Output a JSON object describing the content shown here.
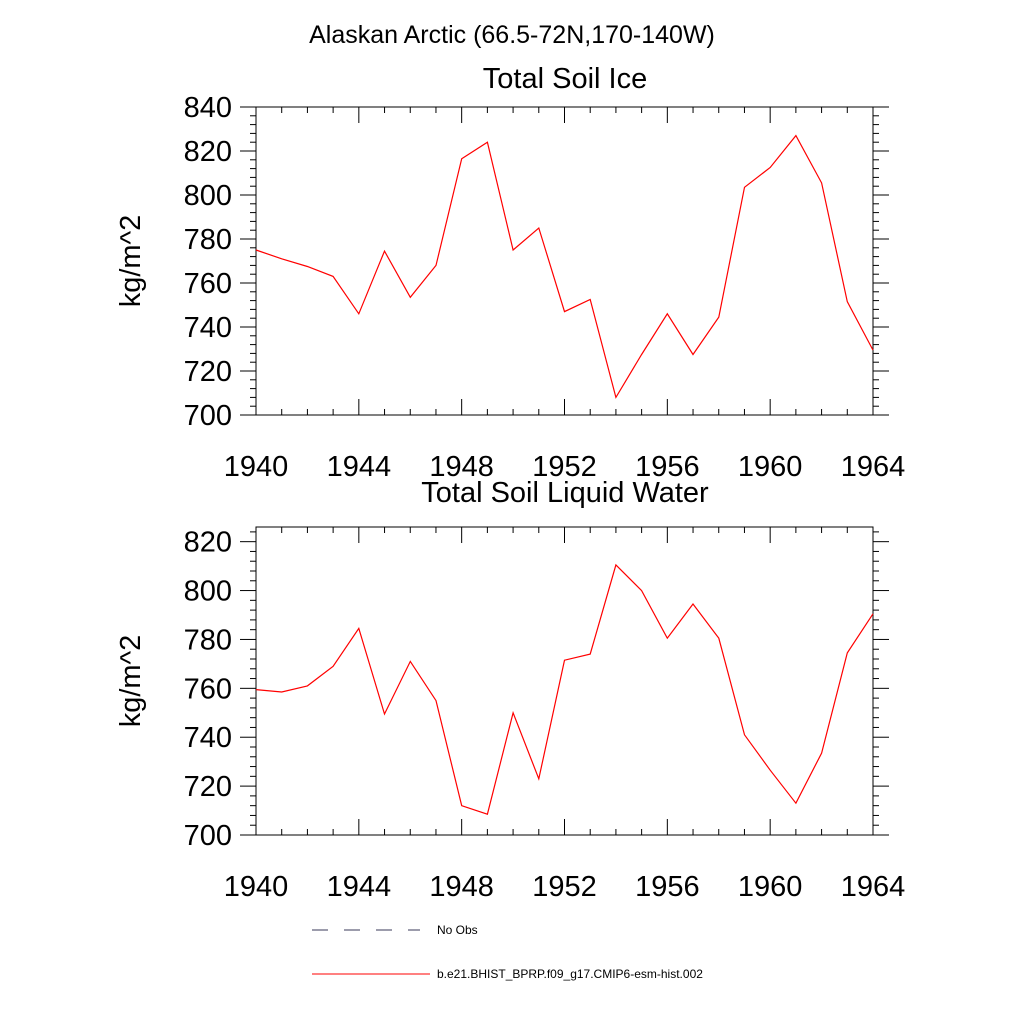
{
  "figure": {
    "suptitle": "Alaskan Arctic (66.5-72N,170-140W)",
    "legend": [
      {
        "label": "No Obs",
        "style": "dashed",
        "color": "#3a3a5a"
      },
      {
        "label": "b.e21.BHIST_BPRP.f09_g17.CMIP6-esm-hist.002",
        "style": "solid",
        "color": "#ff0000"
      }
    ]
  },
  "chart_data": [
    {
      "type": "line",
      "title": "Total Soil Ice",
      "xlabel": "",
      "ylabel": "kg/m^2",
      "xlim": [
        1940,
        1964
      ],
      "ylim": [
        700,
        840
      ],
      "xticks": [
        1940,
        1944,
        1948,
        1952,
        1956,
        1960,
        1964
      ],
      "yticks": [
        700,
        720,
        740,
        760,
        780,
        800,
        820,
        840
      ],
      "grid": false,
      "x": [
        1940,
        1941,
        1942,
        1943,
        1944,
        1945,
        1946,
        1947,
        1948,
        1949,
        1950,
        1951,
        1952,
        1953,
        1954,
        1955,
        1956,
        1957,
        1958,
        1959,
        1960,
        1961,
        1962,
        1963,
        1964
      ],
      "series": [
        {
          "name": "b.e21.BHIST_BPRP.f09_g17.CMIP6-esm-hist.002",
          "color": "#ff0000",
          "values": [
            775,
            771,
            767.5,
            763,
            746,
            774.5,
            753.5,
            768,
            816.5,
            824,
            775,
            785,
            747,
            752.5,
            708,
            727.5,
            746,
            727.5,
            744.5,
            803.5,
            812.5,
            827,
            805.5,
            751.5,
            729.5
          ]
        }
      ]
    },
    {
      "type": "line",
      "title": "Total Soil Liquid Water",
      "xlabel": "",
      "ylabel": "kg/m^2",
      "xlim": [
        1940,
        1964
      ],
      "ylim": [
        700,
        826
      ],
      "xticks": [
        1940,
        1944,
        1948,
        1952,
        1956,
        1960,
        1964
      ],
      "yticks": [
        700,
        720,
        740,
        760,
        780,
        800,
        820
      ],
      "grid": false,
      "x": [
        1940,
        1941,
        1942,
        1943,
        1944,
        1945,
        1946,
        1947,
        1948,
        1949,
        1950,
        1951,
        1952,
        1953,
        1954,
        1955,
        1956,
        1957,
        1958,
        1959,
        1960,
        1961,
        1962,
        1963,
        1964
      ],
      "series": [
        {
          "name": "b.e21.BHIST_BPRP.f09_g17.CMIP6-esm-hist.002",
          "color": "#ff0000",
          "values": [
            759.5,
            758.5,
            761,
            769,
            784.5,
            749.5,
            771,
            755,
            712,
            708.5,
            750,
            723,
            771.5,
            774,
            810.5,
            800,
            780.5,
            794.5,
            780.5,
            741,
            726.5,
            713,
            733.5,
            774.5,
            790.5
          ]
        }
      ]
    }
  ]
}
